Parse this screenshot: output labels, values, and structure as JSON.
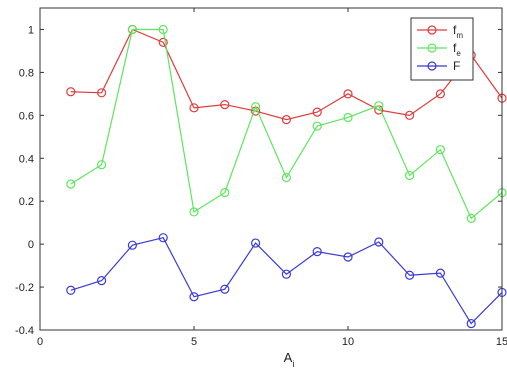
{
  "chart_data": {
    "type": "line",
    "x": [
      1,
      2,
      3,
      4,
      5,
      6,
      7,
      8,
      9,
      10,
      11,
      12,
      13,
      14,
      15
    ],
    "xlabel": {
      "main": "A",
      "sub": "i"
    },
    "ylabel": "",
    "xlim": [
      0,
      15
    ],
    "ylim": [
      -0.4,
      1.1
    ],
    "xticks": [
      "0",
      "5",
      "10",
      "15"
    ],
    "yticks": [
      "-0.4",
      "-0.2",
      "0",
      "0.2",
      "0.4",
      "0.6",
      "0.8",
      "1"
    ],
    "grid": false,
    "legend_position": "top-right",
    "series": [
      {
        "name": "f",
        "name_sub": "m",
        "color": "#e03c3c",
        "values": [
          0.71,
          0.705,
          1.0,
          0.94,
          0.635,
          0.65,
          0.62,
          0.58,
          0.615,
          0.7,
          0.625,
          0.6,
          0.7,
          0.88,
          0.68
        ]
      },
      {
        "name": "f",
        "name_sub": "e",
        "color": "#5ee65e",
        "values": [
          0.28,
          0.37,
          1.0,
          1.0,
          0.15,
          0.24,
          0.64,
          0.31,
          0.55,
          0.59,
          0.645,
          0.32,
          0.44,
          0.12,
          0.24
        ]
      },
      {
        "name": "F",
        "name_sub": "",
        "color": "#3a3ad8",
        "values": [
          -0.215,
          -0.17,
          -0.005,
          0.03,
          -0.245,
          -0.21,
          0.005,
          -0.14,
          -0.035,
          -0.06,
          0.01,
          -0.145,
          -0.135,
          -0.37,
          -0.225
        ]
      }
    ]
  }
}
